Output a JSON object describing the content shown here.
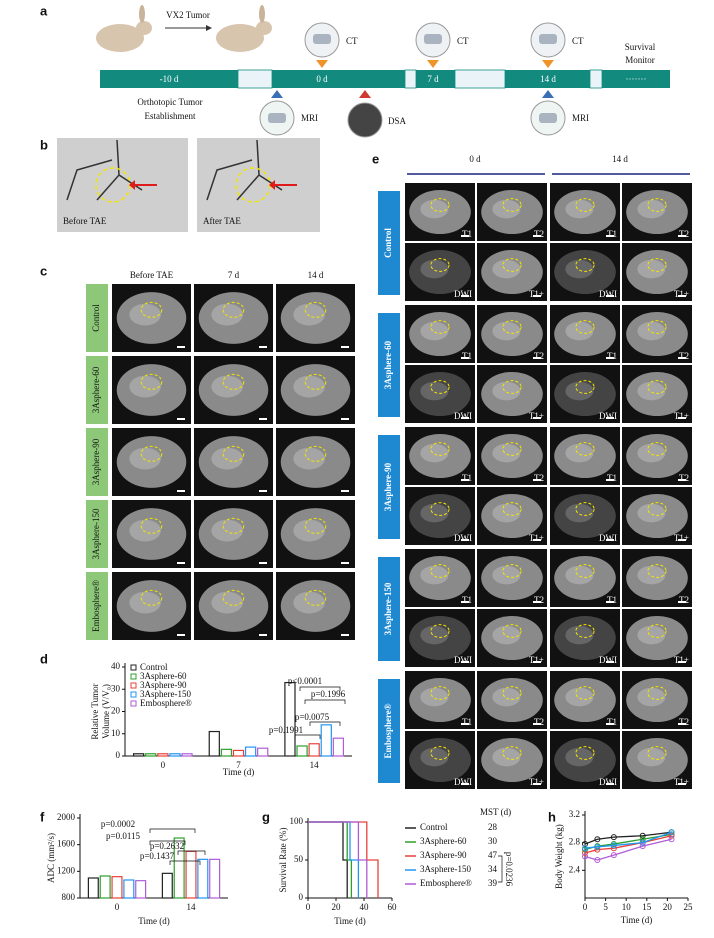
{
  "panel_labels": [
    "a",
    "b",
    "c",
    "d",
    "e",
    "f",
    "g",
    "h"
  ],
  "timeline": {
    "tumor": "VX2 Tumor",
    "segments": [
      "-10 d",
      "0 d",
      "7 d",
      "14 d",
      "·······"
    ],
    "ct": "CT",
    "mri": "MRI",
    "dsa": "DSA",
    "establishment": [
      "Orthotopic Tumor",
      "Establishment"
    ],
    "survival": [
      "Survival",
      "Monitor"
    ]
  },
  "dsa_images": {
    "labels": [
      "Before TAE",
      "After TAE"
    ]
  },
  "ct_images": {
    "columns": [
      "Before TAE",
      "7 d",
      "14 d"
    ],
    "groups": [
      "Control",
      "3Asphere-60",
      "3Asphere-90",
      "3Asphere-150",
      "Embosphere®"
    ]
  },
  "mri_images": {
    "columns": [
      "0 d",
      "14 d"
    ],
    "groups": [
      "Control",
      "3Asphere-60",
      "3Asphere-90",
      "3Asphere-150",
      "Embosphere®"
    ],
    "sequences": [
      "T1",
      "T2",
      "DWI",
      "T1+"
    ]
  },
  "chart_data": [
    {
      "type": "bar",
      "ylabel": [
        "Relative Tumor",
        "Volume (V/V₀)"
      ],
      "xlabel": "Time (d)",
      "categories": [
        "0",
        "7",
        "14"
      ],
      "ylim": [
        0,
        40
      ],
      "yticks": [
        0,
        10,
        20,
        30,
        40
      ],
      "series": [
        {
          "name": "Control",
          "color": "#222222",
          "values": [
            1,
            11,
            33
          ]
        },
        {
          "name": "3Asphere-60",
          "color": "#2ca02c",
          "values": [
            1,
            3,
            4.5
          ]
        },
        {
          "name": "3Asphere-90",
          "color": "#e8413a",
          "values": [
            1,
            2.5,
            5.5
          ]
        },
        {
          "name": "3Asphere-150",
          "color": "#2196f3",
          "values": [
            1,
            4,
            14
          ]
        },
        {
          "name": "Embosphere®",
          "color": "#b05cd6",
          "values": [
            1,
            3.5,
            8
          ]
        }
      ],
      "annotations": [
        "p<0.0001",
        "p=0.1996",
        "p=0.0075",
        "p=0.1991"
      ],
      "legend": "upper left"
    },
    {
      "type": "bar",
      "ylabel": [
        "ADC (mm²/s)"
      ],
      "xlabel": "Time (d)",
      "categories": [
        "0",
        "14"
      ],
      "ylim": [
        800,
        2000
      ],
      "yticks": [
        800,
        1200,
        1600,
        2000
      ],
      "series": [
        {
          "name": "Control",
          "color": "#222222",
          "values": [
            1100,
            1170
          ]
        },
        {
          "name": "3Asphere-60",
          "color": "#2ca02c",
          "values": [
            1130,
            1700
          ]
        },
        {
          "name": "3Asphere-90",
          "color": "#e8413a",
          "values": [
            1120,
            1500
          ]
        },
        {
          "name": "3Asphere-150",
          "color": "#2196f3",
          "values": [
            1070,
            1380
          ]
        },
        {
          "name": "Embosphere®",
          "color": "#b05cd6",
          "values": [
            1060,
            1380
          ]
        }
      ],
      "annotations": [
        "p=0.0002",
        "p=0.0115",
        "p=0.2632",
        "p=0.1437"
      ]
    },
    {
      "type": "step",
      "ylabel": [
        "Survival Rate (%)"
      ],
      "xlabel": "Time (d)",
      "xlim": [
        0,
        60
      ],
      "xticks": [
        0,
        20,
        40,
        60
      ],
      "ylim": [
        0,
        100
      ],
      "yticks": [
        0,
        50,
        100
      ],
      "legend_title": "MST (d)",
      "series": [
        {
          "name": "Control",
          "color": "#222222",
          "x": [
            0,
            25,
            25,
            28,
            28
          ],
          "values": [
            100,
            100,
            50,
            50,
            0
          ],
          "mst": 28
        },
        {
          "name": "3Asphere-60",
          "color": "#2ca02c",
          "x": [
            0,
            28,
            28,
            31,
            31
          ],
          "values": [
            100,
            100,
            50,
            50,
            0
          ],
          "mst": 30
        },
        {
          "name": "3Asphere-90",
          "color": "#e8413a",
          "x": [
            0,
            42,
            42,
            50,
            50
          ],
          "values": [
            100,
            100,
            50,
            50,
            0
          ],
          "mst": 47
        },
        {
          "name": "3Asphere-150",
          "color": "#2196f3",
          "x": [
            0,
            30,
            30,
            36,
            36
          ],
          "values": [
            100,
            100,
            50,
            50,
            0
          ],
          "mst": 34
        },
        {
          "name": "Embosphere®",
          "color": "#b05cd6",
          "x": [
            0,
            36,
            36,
            42,
            42
          ],
          "values": [
            100,
            100,
            50,
            50,
            0
          ],
          "mst": 39
        }
      ],
      "annotations": [
        "p=0.0236"
      ]
    },
    {
      "type": "line",
      "ylabel": [
        "Body Weight (kg)"
      ],
      "xlabel": "Time (d)",
      "xlim": [
        0,
        25
      ],
      "xticks": [
        0,
        5,
        10,
        15,
        20,
        25
      ],
      "ylim": [
        2.0,
        3.2
      ],
      "yticks": [
        2.4,
        2.8,
        3.2
      ],
      "series": [
        {
          "name": "Control",
          "color": "#222222",
          "x": [
            0,
            3,
            7,
            14,
            21
          ],
          "values": [
            2.78,
            2.85,
            2.88,
            2.9,
            2.95
          ]
        },
        {
          "name": "3Asphere-60",
          "color": "#2ca02c",
          "x": [
            0,
            3,
            7,
            14,
            21
          ],
          "values": [
            2.7,
            2.75,
            2.78,
            2.85,
            2.92
          ]
        },
        {
          "name": "3Asphere-90",
          "color": "#e8413a",
          "x": [
            0,
            3,
            7,
            14,
            21
          ],
          "values": [
            2.65,
            2.7,
            2.72,
            2.8,
            2.9
          ]
        },
        {
          "name": "3Asphere-150",
          "color": "#2196f3",
          "x": [
            0,
            3,
            7,
            14,
            21
          ],
          "values": [
            2.72,
            2.74,
            2.76,
            2.8,
            2.95
          ]
        },
        {
          "name": "Embosphere®",
          "color": "#b05cd6",
          "x": [
            0,
            3,
            7,
            14,
            21
          ],
          "values": [
            2.6,
            2.55,
            2.62,
            2.75,
            2.85
          ]
        }
      ]
    }
  ]
}
